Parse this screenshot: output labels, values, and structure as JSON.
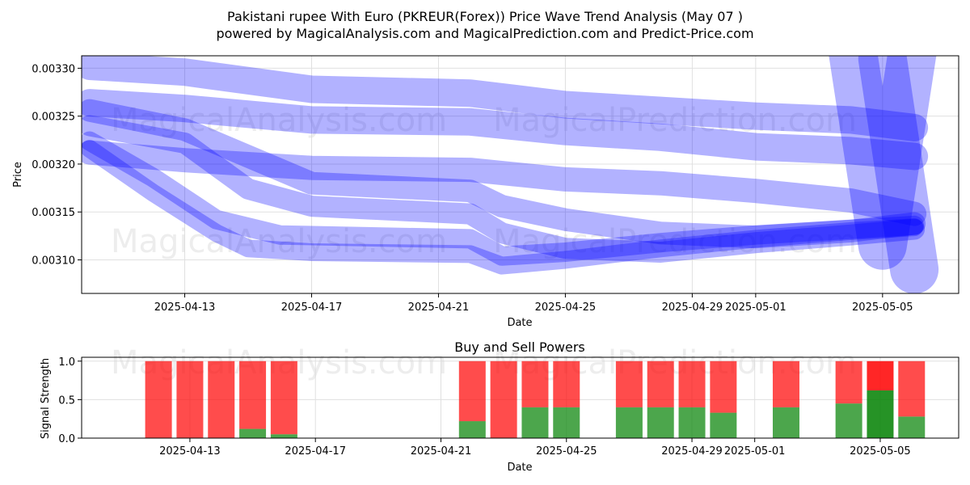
{
  "header": {
    "title": "Pakistani rupee With Euro (PKREUR(Forex)) Price Wave Trend Analysis (May 07 )",
    "subtitle": "powered by MagicalAnalysis.com and MagicalPrediction.com and Predict-Price.com"
  },
  "watermarks": [
    "MagicalAnalysis.com",
    "MagicalPrediction.com"
  ],
  "colors": {
    "wave": "#0000ff",
    "buy": "#008000",
    "sell": "#ff0000",
    "grid": "#e0e0e0"
  },
  "chart_data": [
    {
      "type": "line",
      "title": "",
      "xlabel": "Date",
      "ylabel": "Price",
      "x_ticks": [
        "2025-04-13",
        "2025-04-17",
        "2025-04-21",
        "2025-04-25",
        "2025-04-29",
        "2025-05-01",
        "2025-05-05"
      ],
      "y_ticks": [
        "0.00310",
        "0.00315",
        "0.00320",
        "0.00325",
        "0.00330"
      ],
      "xlim": [
        "2025-04-09",
        "2025-05-07"
      ],
      "ylim": [
        0.003065,
        0.003313
      ],
      "grid": true,
      "series": [
        {
          "x": [
            "2025-04-10",
            "2025-04-13",
            "2025-04-17",
            "2025-04-22",
            "2025-04-25",
            "2025-04-28",
            "2025-05-01",
            "2025-05-04",
            "2025-05-06"
          ],
          "values": [
            0.003302,
            0.003296,
            0.003278,
            0.003274,
            0.003262,
            0.003256,
            0.00325,
            0.003246,
            0.003238
          ],
          "width": 34,
          "opacity": 0.3
        },
        {
          "x": [
            "2025-04-10",
            "2025-04-13",
            "2025-04-17",
            "2025-04-22",
            "2025-04-25",
            "2025-04-28",
            "2025-05-01",
            "2025-05-04",
            "2025-05-06"
          ],
          "values": [
            0.003264,
            0.003258,
            0.003246,
            0.003244,
            0.003234,
            0.003228,
            0.003218,
            0.003214,
            0.003208
          ],
          "width": 34,
          "opacity": 0.3
        },
        {
          "x": [
            "2025-04-10",
            "2025-04-13",
            "2025-04-17",
            "2025-04-22",
            "2025-04-25",
            "2025-04-28",
            "2025-05-01",
            "2025-05-04",
            "2025-05-06"
          ],
          "values": [
            0.003212,
            0.003204,
            0.003196,
            0.003194,
            0.003184,
            0.00318,
            0.003172,
            0.003162,
            0.003148
          ],
          "width": 30,
          "opacity": 0.3
        },
        {
          "x": [
            "2025-04-10",
            "2025-04-13",
            "2025-04-17",
            "2025-04-22",
            "2025-04-23",
            "2025-04-25",
            "2025-04-28",
            "2025-05-01",
            "2025-05-04",
            "2025-05-06"
          ],
          "values": [
            0.003256,
            0.003236,
            0.00318,
            0.003172,
            0.003156,
            0.003142,
            0.003128,
            0.003124,
            0.00313,
            0.003138
          ],
          "width": 28,
          "opacity": 0.3
        },
        {
          "x": [
            "2025-04-10",
            "2025-04-13",
            "2025-04-15",
            "2025-04-17",
            "2025-04-22",
            "2025-04-23",
            "2025-04-25",
            "2025-04-28",
            "2025-05-01",
            "2025-05-04",
            "2025-05-06"
          ],
          "values": [
            0.00324,
            0.003222,
            0.003174,
            0.003156,
            0.003148,
            0.003128,
            0.003112,
            0.003108,
            0.003118,
            0.003126,
            0.003132
          ],
          "width": 26,
          "opacity": 0.3
        },
        {
          "x": [
            "2025-04-10",
            "2025-04-12",
            "2025-04-14",
            "2025-04-16",
            "2025-04-22",
            "2025-04-23",
            "2025-04-25",
            "2025-04-28",
            "2025-05-01",
            "2025-05-04",
            "2025-05-06"
          ],
          "values": [
            0.003224,
            0.003186,
            0.003142,
            0.003126,
            0.003122,
            0.003104,
            0.003108,
            0.003118,
            0.003126,
            0.003132,
            0.003136
          ],
          "width": 24,
          "opacity": 0.3
        },
        {
          "x": [
            "2025-04-10",
            "2025-04-12",
            "2025-04-14",
            "2025-04-15",
            "2025-04-17",
            "2025-04-22",
            "2025-04-23",
            "2025-04-25",
            "2025-04-28",
            "2025-05-01",
            "2025-05-04",
            "2025-05-06"
          ],
          "values": [
            0.003216,
            0.00317,
            0.003128,
            0.003112,
            0.003108,
            0.003106,
            0.003094,
            0.0031,
            0.003112,
            0.003122,
            0.00313,
            0.003134
          ],
          "width": 22,
          "opacity": 0.3
        },
        {
          "x": [
            "2025-05-04",
            "2025-05-05",
            "2025-05-06"
          ],
          "values": [
            0.00333,
            0.003115,
            0.00333
          ],
          "width": 60,
          "opacity": 0.3
        },
        {
          "x": [
            "2025-05-05",
            "2025-05-06"
          ],
          "values": [
            0.00331,
            0.00309
          ],
          "width": 60,
          "opacity": 0.3
        }
      ]
    },
    {
      "type": "bar",
      "title": "Buy and Sell Powers",
      "xlabel": "Date",
      "ylabel": "Signal Strength",
      "x_ticks": [
        "2025-04-13",
        "2025-04-17",
        "2025-04-21",
        "2025-04-25",
        "2025-04-29",
        "2025-05-01",
        "2025-05-05"
      ],
      "y_ticks": [
        "0.0",
        "0.5",
        "1.0"
      ],
      "xlim": [
        "2025-04-09",
        "2025-05-07"
      ],
      "ylim": [
        0,
        1.05
      ],
      "grid": true,
      "categories": [
        "2025-04-12",
        "2025-04-13",
        "2025-04-14",
        "2025-04-15",
        "2025-04-16",
        "2025-04-22",
        "2025-04-23",
        "2025-04-24",
        "2025-04-25",
        "2025-04-27",
        "2025-04-28",
        "2025-04-29",
        "2025-04-30",
        "2025-05-02",
        "2025-05-04",
        "2025-05-05",
        "2025-05-06"
      ],
      "series": [
        {
          "name": "buy",
          "values": [
            0,
            0,
            0,
            0.12,
            0.05,
            0.22,
            0,
            0.4,
            0.4,
            0.4,
            0.4,
            0.4,
            0.33,
            0.4,
            0.45,
            0.62,
            0.28
          ]
        },
        {
          "name": "sell",
          "values": [
            1,
            1,
            1,
            0.88,
            0.95,
            0.78,
            1,
            0.6,
            0.6,
            0.6,
            0.6,
            0.6,
            0.67,
            0.6,
            0.55,
            0.38,
            0.72
          ]
        }
      ],
      "highlight": "2025-05-05"
    }
  ]
}
